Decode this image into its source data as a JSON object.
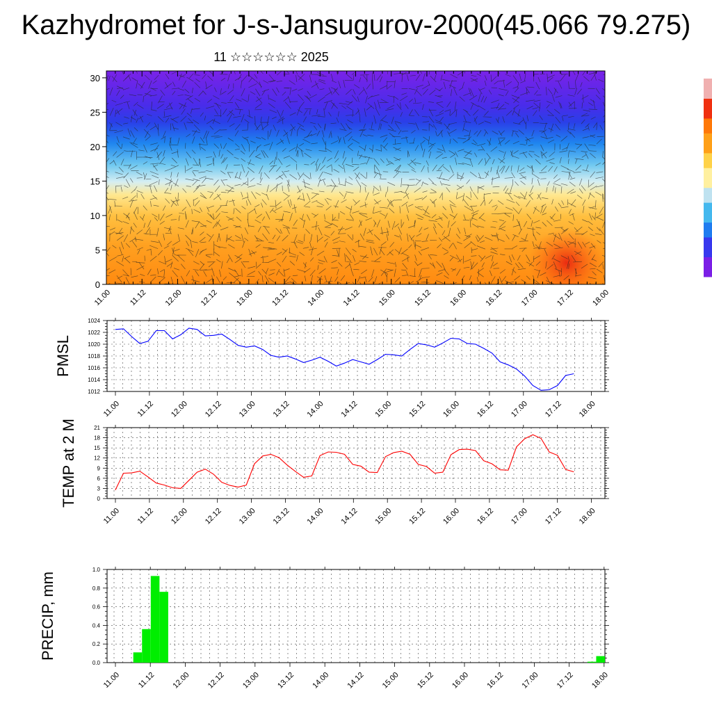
{
  "title": "Kazhydromet for J-s-Jansugurov-2000(45.066 79.275)",
  "subtitle": "11 ☆☆☆☆☆☆ 2025",
  "x_tick_labels": [
    "11.00",
    "11.12",
    "12.00",
    "12.12",
    "13.00",
    "13.12",
    "14.00",
    "14.12",
    "15.00",
    "15.12",
    "16.00",
    "16.12",
    "17.00",
    "17.12",
    "18.00"
  ],
  "chart_data": [
    {
      "type": "heatmap",
      "panel": "cross-section",
      "ylim": [
        0,
        31
      ],
      "yticks": [
        "0",
        "5",
        "10",
        "15",
        "20",
        "25",
        "30"
      ],
      "x_tick_labels": [
        "11.00",
        "11.12",
        "12.00",
        "12.12",
        "13.00",
        "13.12",
        "14.00",
        "14.12",
        "15.00",
        "15.12",
        "16.00",
        "16.12",
        "17.00",
        "17.12",
        "18.00"
      ],
      "colormap": [
        "#7b1fe6",
        "#3838ee",
        "#1f7cf0",
        "#44b8ee",
        "#bfe2f0",
        "#fff0a0",
        "#ffd248",
        "#ffa018",
        "#ff7808",
        "#f03010"
      ],
      "description_overlay": "wind barbs"
    },
    {
      "type": "line",
      "ylabel": "PMSL",
      "ylim": [
        1012,
        1024
      ],
      "yticks": [
        "1012",
        "1014",
        "1016",
        "1018",
        "1020",
        "1022",
        "1024"
      ],
      "color": "#0000ff",
      "x": [
        0,
        3,
        6,
        9,
        12,
        15,
        18,
        21,
        24,
        27,
        30,
        33,
        36,
        39,
        42,
        45,
        48,
        51,
        54,
        57,
        60,
        63,
        66,
        69,
        72,
        75,
        78,
        81,
        84,
        87,
        90,
        93,
        96,
        99,
        102,
        105,
        108,
        111,
        114,
        117,
        120,
        123,
        126,
        129,
        132,
        135,
        138,
        141,
        144,
        147,
        150,
        153,
        156,
        159,
        162,
        165,
        168
      ],
      "values": [
        1022.5,
        1022.6,
        1021.3,
        1020.1,
        1020.5,
        1022.3,
        1022.3,
        1020.9,
        1021.6,
        1022.7,
        1022.5,
        1021.4,
        1021.5,
        1021.7,
        1020.8,
        1019.8,
        1019.5,
        1019.7,
        1019.1,
        1018.1,
        1017.8,
        1018.0,
        1017.5,
        1016.9,
        1017.3,
        1017.8,
        1017.1,
        1016.3,
        1016.8,
        1017.4,
        1017.0,
        1016.6,
        1017.4,
        1018.3,
        1018.2,
        1018.0,
        1019.1,
        1020.1,
        1019.9,
        1019.5,
        1020.2,
        1021.0,
        1020.9,
        1020.1,
        1020.0,
        1019.3,
        1018.5,
        1017.0,
        1016.5,
        1015.8,
        1014.6,
        1013.0,
        1012.2,
        1012.3,
        1013.0,
        1014.7,
        1015.0
      ]
    },
    {
      "type": "line",
      "ylabel": "TEMP at 2 M",
      "ylim": [
        0,
        21
      ],
      "yticks": [
        "0",
        "3",
        "6",
        "9",
        "12",
        "15",
        "18",
        "21"
      ],
      "color": "#ff0000",
      "x": [
        0,
        3,
        6,
        9,
        12,
        15,
        18,
        21,
        24,
        27,
        30,
        33,
        36,
        39,
        42,
        45,
        48,
        51,
        54,
        57,
        60,
        63,
        66,
        69,
        72,
        75,
        78,
        81,
        84,
        87,
        90,
        93,
        96,
        99,
        102,
        105,
        108,
        111,
        114,
        117,
        120,
        123,
        126,
        129,
        132,
        135,
        138,
        141,
        144,
        147,
        150,
        153,
        156,
        159,
        162,
        165,
        168
      ],
      "values": [
        2.5,
        7.5,
        7.6,
        8.1,
        6.4,
        4.6,
        4.0,
        3.2,
        3.0,
        5.4,
        7.8,
        8.7,
        7.2,
        4.8,
        3.9,
        3.4,
        4.0,
        10.3,
        12.6,
        13.1,
        12.1,
        9.9,
        8.0,
        6.3,
        6.7,
        12.7,
        13.8,
        13.7,
        13.1,
        10.1,
        9.6,
        7.8,
        7.7,
        12.4,
        13.6,
        14.0,
        13.1,
        10.1,
        9.5,
        7.5,
        7.8,
        13.0,
        14.5,
        14.6,
        14.2,
        11.2,
        10.3,
        8.5,
        8.4,
        15.3,
        17.7,
        18.9,
        17.8,
        13.8,
        12.8,
        8.6,
        7.9
      ]
    },
    {
      "type": "bar",
      "ylabel": "PRECIP, mm",
      "ylim": [
        0,
        1
      ],
      "yticks": [
        "0.0",
        "0.2",
        "0.4",
        "0.6",
        "0.8",
        "1.0"
      ],
      "color": "#00ee00",
      "x": [
        9,
        12,
        15,
        18,
        21,
        165,
        168
      ],
      "values": [
        0.11,
        0.36,
        0.93,
        0.76,
        0.0,
        0.01,
        0.07
      ]
    }
  ],
  "colorbar": {
    "colors": [
      "#7b1fe6",
      "#3838ee",
      "#1f7cf0",
      "#44b8ee",
      "#bfe2f0",
      "#fff0a0",
      "#ffd248",
      "#ffa018",
      "#ff7808",
      "#f03010",
      "#f0b0b0"
    ]
  }
}
